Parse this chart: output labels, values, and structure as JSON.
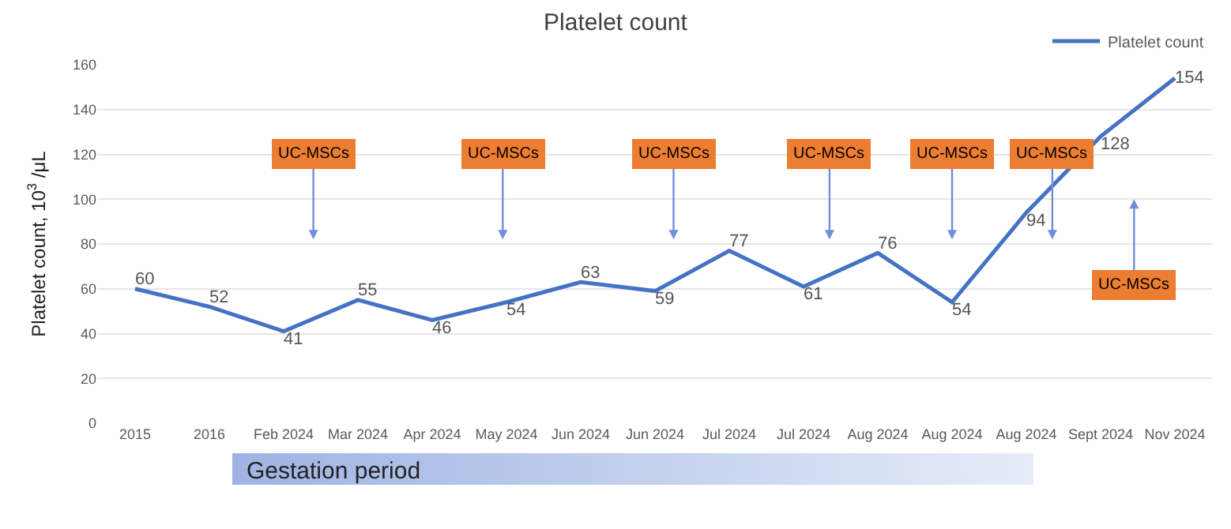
{
  "chart_data": {
    "type": "line",
    "title": "Platelet count",
    "ylabel": "Platelet count, 10$^{3}$ /μL",
    "categories": [
      "2015",
      "2016",
      "Feb 2024",
      "Mar 2024",
      "Apr 2024",
      "May 2024",
      "Jun 2024",
      "Jun 2024",
      "Jul 2024",
      "Jul 2024",
      "Aug 2024",
      "Aug 2024",
      "Aug 2024",
      "Sept 2024",
      "Nov 2024"
    ],
    "series": [
      {
        "name": "Platelet count",
        "color": "#4472c4",
        "values": [
          60,
          52,
          41,
          55,
          46,
          54,
          63,
          59,
          77,
          61,
          76,
          54,
          94,
          128,
          154
        ]
      }
    ],
    "ylim": [
      0,
      160
    ],
    "yticks": [
      0,
      20,
      40,
      60,
      80,
      100,
      120,
      140,
      160
    ],
    "grid": "y",
    "legend": "top right",
    "marker": "none",
    "line_style": "solid",
    "data_labels": true,
    "annotations": [
      "UC-MSCs",
      "UC-MSCs",
      "UC-MSCs",
      "UC-MSCs",
      "UC-MSCs",
      "UC-MSCs",
      "UC-MSCs",
      "Gestation period"
    ]
  }
}
